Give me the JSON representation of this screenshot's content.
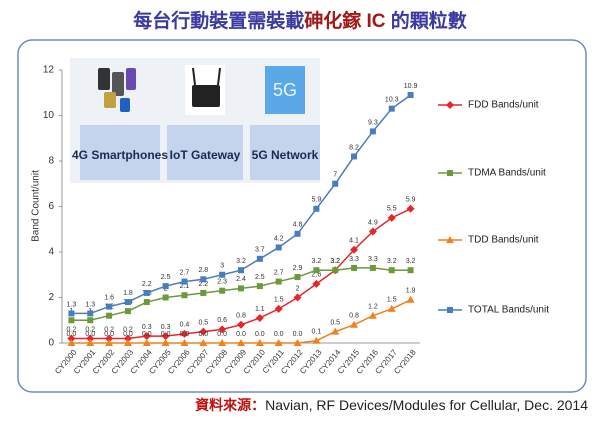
{
  "chart_data": {
    "type": "line",
    "title_parts": [
      "每台行動裝置需裝載",
      "砷化鎵 IC",
      " 的顆粒數"
    ],
    "y_label": "Band Count/unit",
    "source_label": "資料來源：",
    "source": "Navian, RF Devices/Modules for Cellular, Dec. 2014",
    "panels": [
      "4G Smartphones",
      "IoT Gateway",
      "5G Network"
    ],
    "icon_text": "5G",
    "categories": [
      "CY2000",
      "CY2001",
      "CY2002",
      "CY2003",
      "CY2004",
      "CY2005",
      "CY2006",
      "CY2007",
      "CY2008",
      "CY2009",
      "CY2010",
      "CY2011",
      "CY2012",
      "CY2013",
      "CY2014",
      "CY2015",
      "CY2016",
      "CY2017",
      "CY2018"
    ],
    "series": [
      {
        "name": "FDD Bands/unit",
        "color": "#e8262a",
        "marker": "diamond",
        "values": [
          0.2,
          0.2,
          0.2,
          0.2,
          0.3,
          0.3,
          0.4,
          0.5,
          0.6,
          0.8,
          1.1,
          1.5,
          2.0,
          2.6,
          3.2,
          4.1,
          4.9,
          5.5,
          5.9
        ]
      },
      {
        "name": "TDMA Bands/unit",
        "color": "#6a9a3a",
        "marker": "square",
        "values": [
          1.0,
          1.0,
          1.2,
          1.4,
          1.8,
          2.0,
          2.1,
          2.2,
          2.3,
          2.4,
          2.5,
          2.7,
          2.9,
          3.2,
          3.2,
          3.3,
          3.3,
          3.2,
          3.2
        ]
      },
      {
        "name": "TDD Bands/unit",
        "color": "#f0821e",
        "marker": "triangle",
        "values": [
          0,
          0,
          0,
          0,
          0,
          0,
          0,
          0,
          0,
          0,
          0,
          0,
          0,
          0.1,
          0.5,
          0.8,
          1.2,
          1.5,
          1.9
        ],
        "value_labels": [
          "0.0",
          "0.0",
          "0.0",
          "0.0",
          "0.0",
          "0.0",
          "0.0",
          "0.0",
          "0.0",
          "0.0",
          "0.0",
          "0.0",
          "0.0",
          "0.1",
          "0.5",
          "0.8",
          "1.2",
          "1.5",
          "1.9"
        ]
      },
      {
        "name": "TOTAL Bands/unit",
        "color": "#4a7cc0",
        "marker": "square",
        "values": [
          1.3,
          1.3,
          1.6,
          1.8,
          2.2,
          2.5,
          2.7,
          2.8,
          3.0,
          3.2,
          3.7,
          4.2,
          4.8,
          5.9,
          7.0,
          8.2,
          9.3,
          10.3,
          10.9
        ]
      }
    ],
    "ylim": [
      0,
      12
    ],
    "yticks": [
      0,
      2,
      4,
      6,
      8,
      10,
      12
    ],
    "grid": false,
    "legend": "right"
  }
}
